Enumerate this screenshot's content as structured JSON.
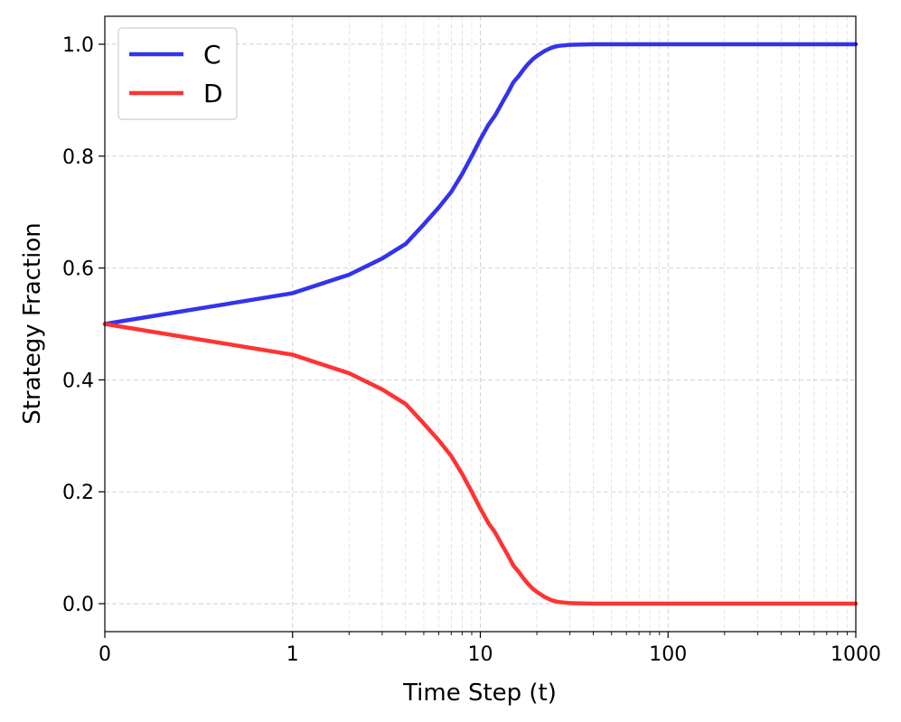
{
  "chart_data": {
    "type": "line",
    "title": "",
    "xlabel": "Time Step (t)",
    "ylabel": "Strategy Fraction",
    "x_scale": "symlog",
    "xlim": [
      0,
      1000
    ],
    "ylim": [
      -0.05,
      1.05
    ],
    "x_ticks": [
      0,
      1,
      10,
      100,
      1000
    ],
    "x_tick_labels": [
      "0",
      "1",
      "10",
      "100",
      "1000"
    ],
    "y_ticks": [
      0.0,
      0.2,
      0.4,
      0.6,
      0.8,
      1.0
    ],
    "y_tick_labels": [
      "0.0",
      "0.2",
      "0.4",
      "0.6",
      "0.8",
      "1.0"
    ],
    "grid": true,
    "legend_position": "top-left",
    "x": [
      0,
      1,
      2,
      3,
      4,
      5,
      6,
      7,
      8,
      9,
      10,
      11,
      12,
      13,
      14,
      15,
      16,
      17,
      18,
      19,
      20,
      22,
      24,
      26,
      28,
      30,
      35,
      40,
      50,
      70,
      100,
      200,
      500,
      1000
    ],
    "series": [
      {
        "name": "C",
        "color": "#3333ee",
        "values": [
          0.5,
          0.555,
          0.588,
          0.617,
          0.643,
          0.678,
          0.708,
          0.736,
          0.768,
          0.8,
          0.83,
          0.855,
          0.873,
          0.894,
          0.913,
          0.932,
          0.943,
          0.955,
          0.965,
          0.973,
          0.979,
          0.988,
          0.994,
          0.997,
          0.998,
          0.999,
          0.9995,
          0.9999,
          1.0,
          1.0,
          1.0,
          1.0,
          1.0,
          1.0
        ]
      },
      {
        "name": "D",
        "color": "#ff3333",
        "values": [
          0.5,
          0.445,
          0.412,
          0.383,
          0.357,
          0.322,
          0.292,
          0.264,
          0.232,
          0.2,
          0.17,
          0.145,
          0.127,
          0.106,
          0.087,
          0.068,
          0.057,
          0.045,
          0.035,
          0.027,
          0.021,
          0.012,
          0.006,
          0.003,
          0.002,
          0.001,
          0.0005,
          0.0001,
          0.0,
          0.0,
          0.0,
          0.0,
          0.0,
          0.0
        ]
      }
    ]
  }
}
